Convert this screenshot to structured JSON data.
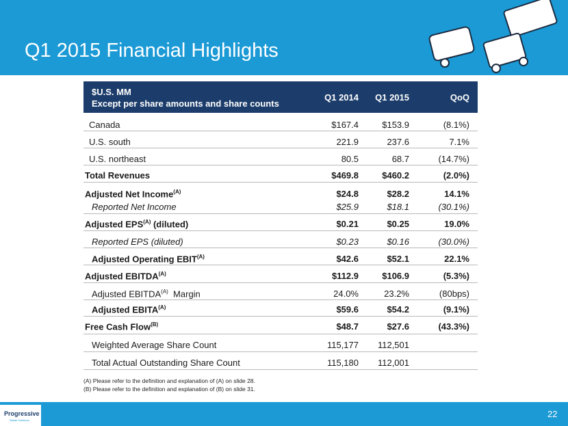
{
  "header": {
    "title": "Q1 2015 Financial Highlights"
  },
  "table": {
    "head": {
      "unit": "$U.S. MM",
      "unit_note": "Except per share amounts and share counts",
      "columns": [
        "Q1 2014",
        "Q1 2015",
        "QoQ"
      ]
    },
    "rows": [
      {
        "label": "Canada",
        "cells": [
          "$167.4",
          "$153.9",
          "(8.1%)"
        ]
      },
      {
        "label": "U.S. south",
        "cells": [
          "221.9",
          "237.6",
          "7.1%"
        ]
      },
      {
        "label": "U.S. northeast",
        "cells": [
          "80.5",
          "68.7",
          "(14.7%)"
        ]
      },
      {
        "label": "Total Revenues",
        "cells": [
          "$469.8",
          "$460.2",
          "(2.0%)"
        ]
      },
      {
        "label": "Adjusted Net Income",
        "sup": "(A)",
        "cells": [
          "$24.8",
          "$28.2",
          "14.1%"
        ]
      },
      {
        "label": "Reported Net Income",
        "cells": [
          "$25.9",
          "$18.1",
          "(30.1%)"
        ]
      },
      {
        "label": "Adjusted EPS",
        "sup": "(A)",
        "suffix": " (diluted)",
        "cells": [
          "$0.21",
          "$0.25",
          "19.0%"
        ]
      },
      {
        "label": "Reported EPS (diluted)",
        "cells": [
          "$0.23",
          "$0.16",
          "(30.0%)"
        ]
      },
      {
        "label": "Adjusted Operating EBIT",
        "sup": "(A)",
        "cells": [
          "$42.6",
          "$52.1",
          "22.1%"
        ]
      },
      {
        "label": "Adjusted EBITDA",
        "sup": "(A)",
        "cells": [
          "$112.9",
          "$106.9",
          "(5.3%)"
        ]
      },
      {
        "label": "Adjusted EBITDA",
        "sup": "(A)",
        "suffix": "  Margin",
        "cells": [
          "24.0%",
          "23.2%",
          "(80bps)"
        ]
      },
      {
        "label": "Adjusted EBITA",
        "sup": "(A)",
        "cells": [
          "$59.6",
          "$54.2",
          "(9.1%)"
        ]
      },
      {
        "label": "Free Cash Flow",
        "sup": "(B)",
        "cells": [
          "$48.7",
          "$27.6",
          "(43.3%)"
        ]
      },
      {
        "label": "Weighted Average Share Count",
        "cells": [
          "115,177",
          "112,501"
        ]
      },
      {
        "label": "Total Actual Outstanding Share Count",
        "cells": [
          "115,180",
          "112,001"
        ]
      }
    ]
  },
  "footnotes": [
    "(A) Please refer to the definition and explanation of (A) on slide 28.",
    "(B) Please refer to the definition and explanation of (B) on slide 31."
  ],
  "footer": {
    "logo": "Progressive",
    "logo_sub": "Waste Solutions",
    "page": "22"
  }
}
